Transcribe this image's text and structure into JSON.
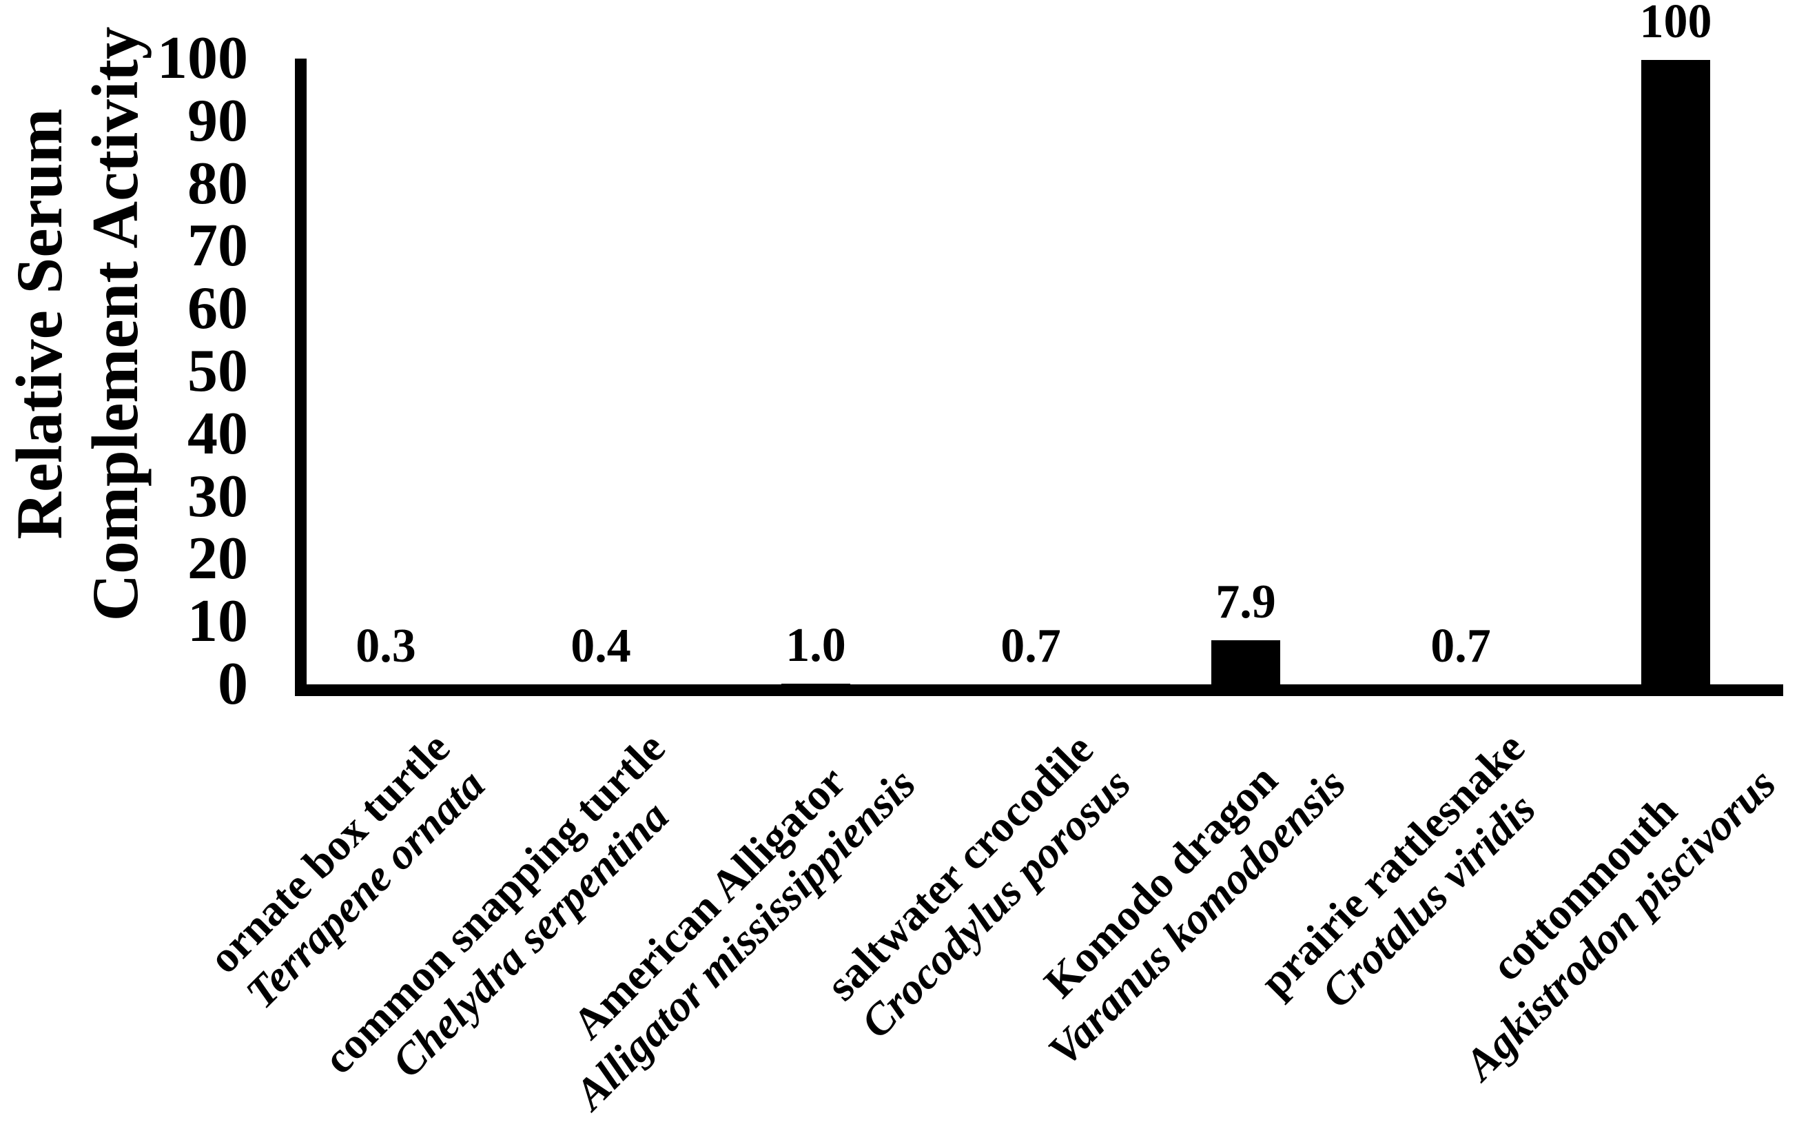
{
  "chart_data": {
    "type": "bar",
    "title": "",
    "ylabel_line1": "Relative Serum",
    "ylabel_line2": "Complement Activity",
    "ylim": [
      0,
      100
    ],
    "yticks": [
      100,
      90,
      80,
      70,
      60,
      50,
      40,
      30,
      20,
      10,
      0
    ],
    "grid": "off",
    "legend": "none",
    "bar_color": "#000000",
    "background_color": "#ffffff",
    "categories": [
      {
        "common": "ornate box turtle",
        "species": "Terrapene ornata"
      },
      {
        "common": "common snapping turtle",
        "species": "Chelydra serpentina"
      },
      {
        "common": "American Alligator",
        "species": "Alligator mississippiensis"
      },
      {
        "common": "saltwater crocodile",
        "species": "Crocodylus porosus"
      },
      {
        "common": "Komodo dragon",
        "species": "Varanus komodoensis"
      },
      {
        "common": "prairie rattlesnake",
        "species": "Crotalus viridis"
      },
      {
        "common": "cottonmouth",
        "species": "Agkistrodon piscivorus"
      }
    ],
    "values": [
      0.3,
      0.4,
      1.0,
      0.7,
      7.9,
      0.7,
      100
    ],
    "value_labels": [
      "0.3",
      "0.4",
      "1.0",
      "0.7",
      "7.9",
      "0.7",
      "100"
    ]
  }
}
